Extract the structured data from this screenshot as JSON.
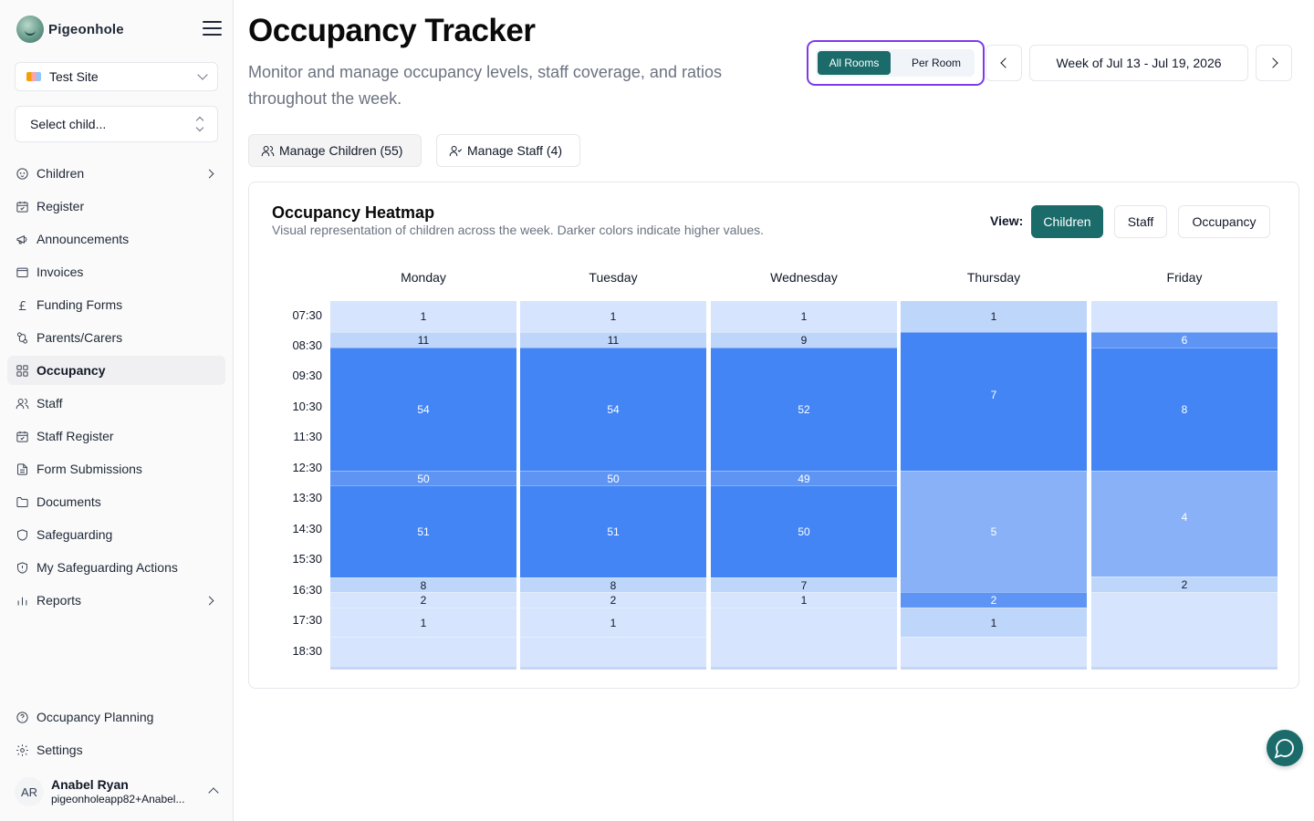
{
  "brand": {
    "name": "Pigeonhole"
  },
  "sidebar": {
    "site_select": {
      "value": "Test Site"
    },
    "child_select": {
      "placeholder": "Select child..."
    },
    "items": [
      {
        "label": "Children",
        "icon": "baby-icon",
        "chevron": true,
        "active": false
      },
      {
        "label": "Register",
        "icon": "calendar-check-icon",
        "chevron": false,
        "active": false
      },
      {
        "label": "Announcements",
        "icon": "megaphone-icon",
        "chevron": false,
        "active": false
      },
      {
        "label": "Invoices",
        "icon": "wallet-icon",
        "chevron": false,
        "active": false
      },
      {
        "label": "Funding Forms",
        "icon": "pound-icon",
        "chevron": false,
        "active": false
      },
      {
        "label": "Parents/Carers",
        "icon": "parents-icon",
        "chevron": false,
        "active": false
      },
      {
        "label": "Occupancy",
        "icon": "grid-icon",
        "chevron": false,
        "active": true
      },
      {
        "label": "Staff",
        "icon": "users-icon",
        "chevron": false,
        "active": false
      },
      {
        "label": "Staff Register",
        "icon": "calendar-check-icon",
        "chevron": false,
        "active": false
      },
      {
        "label": "Form Submissions",
        "icon": "file-text-icon",
        "chevron": false,
        "active": false
      },
      {
        "label": "Documents",
        "icon": "folder-icon",
        "chevron": false,
        "active": false
      },
      {
        "label": "Safeguarding",
        "icon": "shield-icon",
        "chevron": false,
        "active": false
      },
      {
        "label": "My Safeguarding Actions",
        "icon": "shield-alert-icon",
        "chevron": false,
        "active": false
      },
      {
        "label": "Reports",
        "icon": "bar-chart-icon",
        "chevron": true,
        "active": false
      }
    ],
    "bottom_items": [
      {
        "label": "Occupancy Planning",
        "icon": "help-circle-icon"
      },
      {
        "label": "Settings",
        "icon": "gear-icon"
      }
    ],
    "user": {
      "initials": "AR",
      "name": "Anabel Ryan",
      "email": "pigeonholeapp82+Anabel..."
    }
  },
  "header": {
    "title": "Occupancy Tracker",
    "subtitle": "Monitor and manage occupancy levels, staff coverage, and ratios throughout the week.",
    "room_toggle": {
      "all": "All Rooms",
      "per": "Per Room",
      "selected": "All Rooms"
    },
    "week_label": "Week of Jul 13 - Jul 19, 2026"
  },
  "actions": {
    "manage_children": "Manage Children (55)",
    "manage_staff": "Manage Staff (4)"
  },
  "heatmap": {
    "title": "Occupancy Heatmap",
    "description": "Visual representation of children across the week. Darker colors indicate higher values.",
    "view_label": "View:",
    "views": [
      "Children",
      "Staff",
      "Occupancy"
    ],
    "selected_view": "Children",
    "times": [
      "07:30",
      "08:30",
      "09:30",
      "10:30",
      "11:30",
      "12:30",
      "13:30",
      "14:30",
      "15:30",
      "16:30",
      "17:30",
      "18:30"
    ],
    "days": [
      {
        "name": "Monday",
        "segments": [
          {
            "value": "1",
            "level": 1
          },
          {
            "value": "11",
            "level": 2
          },
          {
            "value": "54",
            "level": 5
          },
          {
            "value": "50",
            "level": 4
          },
          {
            "value": "51",
            "level": 5
          },
          {
            "value": "8",
            "level": 2
          },
          {
            "value": "2",
            "level": 1
          },
          {
            "value": "1",
            "level": 1
          },
          {
            "value": "",
            "level": 1
          }
        ]
      },
      {
        "name": "Tuesday",
        "segments": [
          {
            "value": "1",
            "level": 1
          },
          {
            "value": "11",
            "level": 2
          },
          {
            "value": "54",
            "level": 5
          },
          {
            "value": "50",
            "level": 4
          },
          {
            "value": "51",
            "level": 5
          },
          {
            "value": "8",
            "level": 2
          },
          {
            "value": "2",
            "level": 1
          },
          {
            "value": "1",
            "level": 1
          },
          {
            "value": "",
            "level": 1
          }
        ]
      },
      {
        "name": "Wednesday",
        "segments": [
          {
            "value": "1",
            "level": 1
          },
          {
            "value": "9",
            "level": 2
          },
          {
            "value": "52",
            "level": 5
          },
          {
            "value": "49",
            "level": 4
          },
          {
            "value": "50",
            "level": 5
          },
          {
            "value": "7",
            "level": 2
          },
          {
            "value": "1",
            "level": 1
          },
          {
            "value": "",
            "level": 1
          }
        ]
      },
      {
        "name": "Thursday",
        "segments": [
          {
            "value": "1",
            "level": 2
          },
          {
            "value": "7",
            "level": 5
          },
          {
            "value": "5",
            "level": 3
          },
          {
            "value": "2",
            "level": 4
          },
          {
            "value": "1",
            "level": 2
          },
          {
            "value": "",
            "level": 1
          }
        ]
      },
      {
        "name": "Friday",
        "segments": [
          {
            "value": "",
            "level": 1
          },
          {
            "value": "6",
            "level": 4
          },
          {
            "value": "8",
            "level": 5
          },
          {
            "value": "4",
            "level": 3
          },
          {
            "value": "2",
            "level": 2
          },
          {
            "value": "",
            "level": 1
          }
        ]
      }
    ],
    "colors": {
      "level1": "#d6e4fd",
      "level2": "#bfd6fb",
      "level3": "#89b1f7",
      "level4": "#5e95f4",
      "level5": "#4385f4"
    }
  }
}
